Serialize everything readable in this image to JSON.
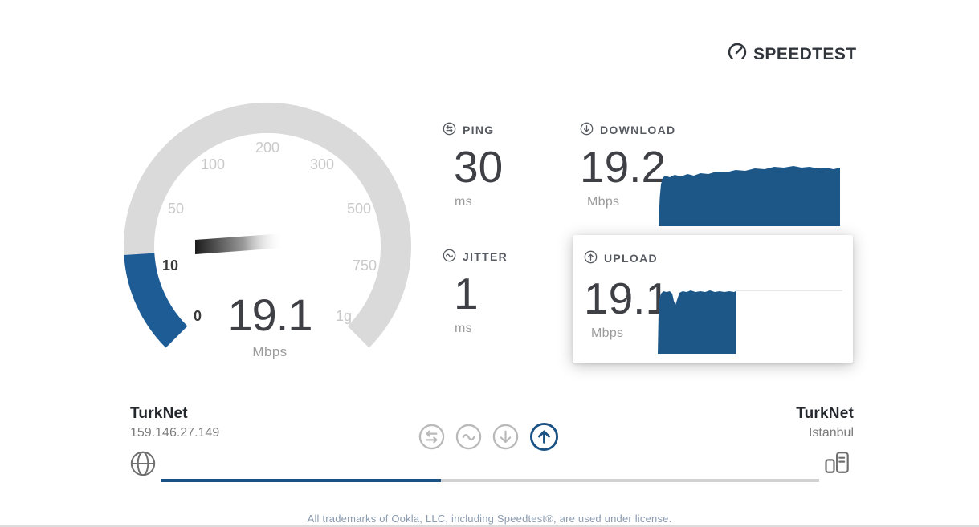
{
  "header": {
    "logo_text": "SPEEDTEST"
  },
  "gauge": {
    "value": "19.1",
    "unit": "Mbps",
    "scale_labels": [
      "0",
      "10",
      "50",
      "100",
      "200",
      "300",
      "500",
      "750",
      "1g"
    ]
  },
  "metrics": {
    "ping": {
      "label": "PING",
      "value": "30",
      "unit": "ms"
    },
    "jitter": {
      "label": "JITTER",
      "value": "1",
      "unit": "ms"
    },
    "download": {
      "label": "DOWNLOAD",
      "value": "19.2",
      "unit": "Mbps"
    },
    "upload": {
      "label": "UPLOAD",
      "value": "19.1",
      "unit": "Mbps"
    }
  },
  "connection": {
    "isp": {
      "name": "TurkNet",
      "ip": "159.146.27.149"
    },
    "server": {
      "name": "TurkNet",
      "location": "Istanbul"
    }
  },
  "progress": {
    "percent": 42.6,
    "active_phase": "upload"
  },
  "footer": {
    "license_text": "All trademarks of Ookla, LLC, including Speedtest®, are used under license."
  },
  "colors": {
    "brand_blue": "#1d5788",
    "gauge_blue": "#1e5c96",
    "progress_blue": "#1d5182",
    "arc_gray": "#dadada"
  },
  "chart_data": [
    {
      "type": "gauge",
      "title": "current-speed-gauge",
      "value": 19.1,
      "unit": "Mbps",
      "scale_ticks": [
        "0",
        "10",
        "50",
        "100",
        "200",
        "300",
        "500",
        "750",
        "1g"
      ],
      "arc_degrees": 270,
      "fill_from": 0,
      "fill_to": 19.1,
      "highlighted_ticks": [
        "0",
        "10"
      ]
    },
    {
      "type": "area",
      "title": "download-throughput",
      "unit": "Mbps",
      "final_value": 19.2,
      "x": "time (unlabeled)",
      "values_approx": [
        0,
        16.5,
        17.8,
        18.2,
        18.1,
        18.4,
        18.3,
        18.6,
        18.8,
        19.0,
        19.2,
        19.1,
        19.0,
        19.2,
        19.2
      ],
      "fill_color": "#1d5788"
    },
    {
      "type": "area",
      "title": "upload-throughput",
      "unit": "Mbps",
      "final_value": 19.1,
      "x": "time (unlabeled, test ~42% complete)",
      "values_approx": [
        0,
        18.7,
        19.0,
        18.9,
        17.2,
        18.3,
        19.0,
        19.1,
        19.0,
        19.1,
        19.1
      ],
      "fill_color": "#1d5788",
      "baseline_gridline": true
    }
  ]
}
